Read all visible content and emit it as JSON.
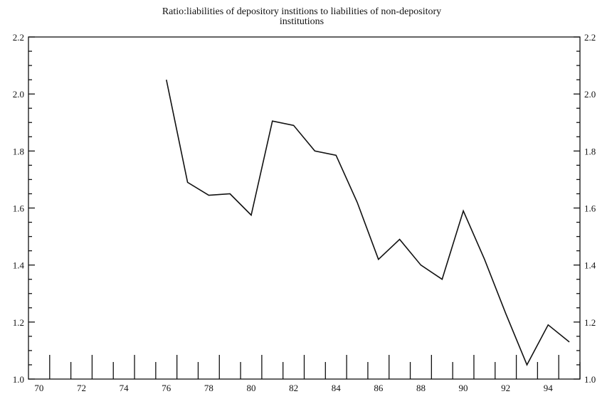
{
  "chart_data": {
    "type": "line",
    "title_lines": [
      "Ratio:liabilities of depository institions to liabilities of non-depository",
      "institutions"
    ],
    "xlabel": "",
    "ylabel": "",
    "xlim": [
      1969.5,
      1995.5
    ],
    "ylim": [
      1.0,
      2.2
    ],
    "x_tick_labels": [
      "70",
      "72",
      "74",
      "76",
      "78",
      "80",
      "82",
      "84",
      "86",
      "88",
      "90",
      "92",
      "94"
    ],
    "x_tick_values": [
      1970,
      1972,
      1974,
      1976,
      1978,
      1980,
      1982,
      1984,
      1986,
      1988,
      1990,
      1992,
      1994
    ],
    "y_tick_labels_left": [
      "1.0",
      "1.2",
      "1.4",
      "1.6",
      "1.8",
      "2.0",
      "2.2"
    ],
    "y_tick_labels_right": [
      "1.0",
      "1.2",
      "1.4",
      "1.6",
      "1.8",
      "2.0",
      "2.2"
    ],
    "y_tick_values": [
      1.0,
      1.2,
      1.4,
      1.6,
      1.8,
      2.0,
      2.2
    ],
    "grid": false,
    "legend": "none",
    "series": [
      {
        "x": [
          1976,
          1977,
          1978,
          1979,
          1980,
          1981,
          1982,
          1983,
          1984,
          1985,
          1986,
          1987,
          1988,
          1989,
          1990,
          1991,
          1992,
          1993,
          1994,
          1995
        ],
        "y": [
          2.05,
          1.69,
          1.645,
          1.65,
          1.575,
          1.905,
          1.89,
          1.8,
          1.785,
          1.62,
          1.42,
          1.49,
          1.4,
          1.35,
          1.59,
          1.42,
          1.23,
          1.05,
          1.19,
          1.13
        ]
      }
    ],
    "color": "#111111"
  }
}
